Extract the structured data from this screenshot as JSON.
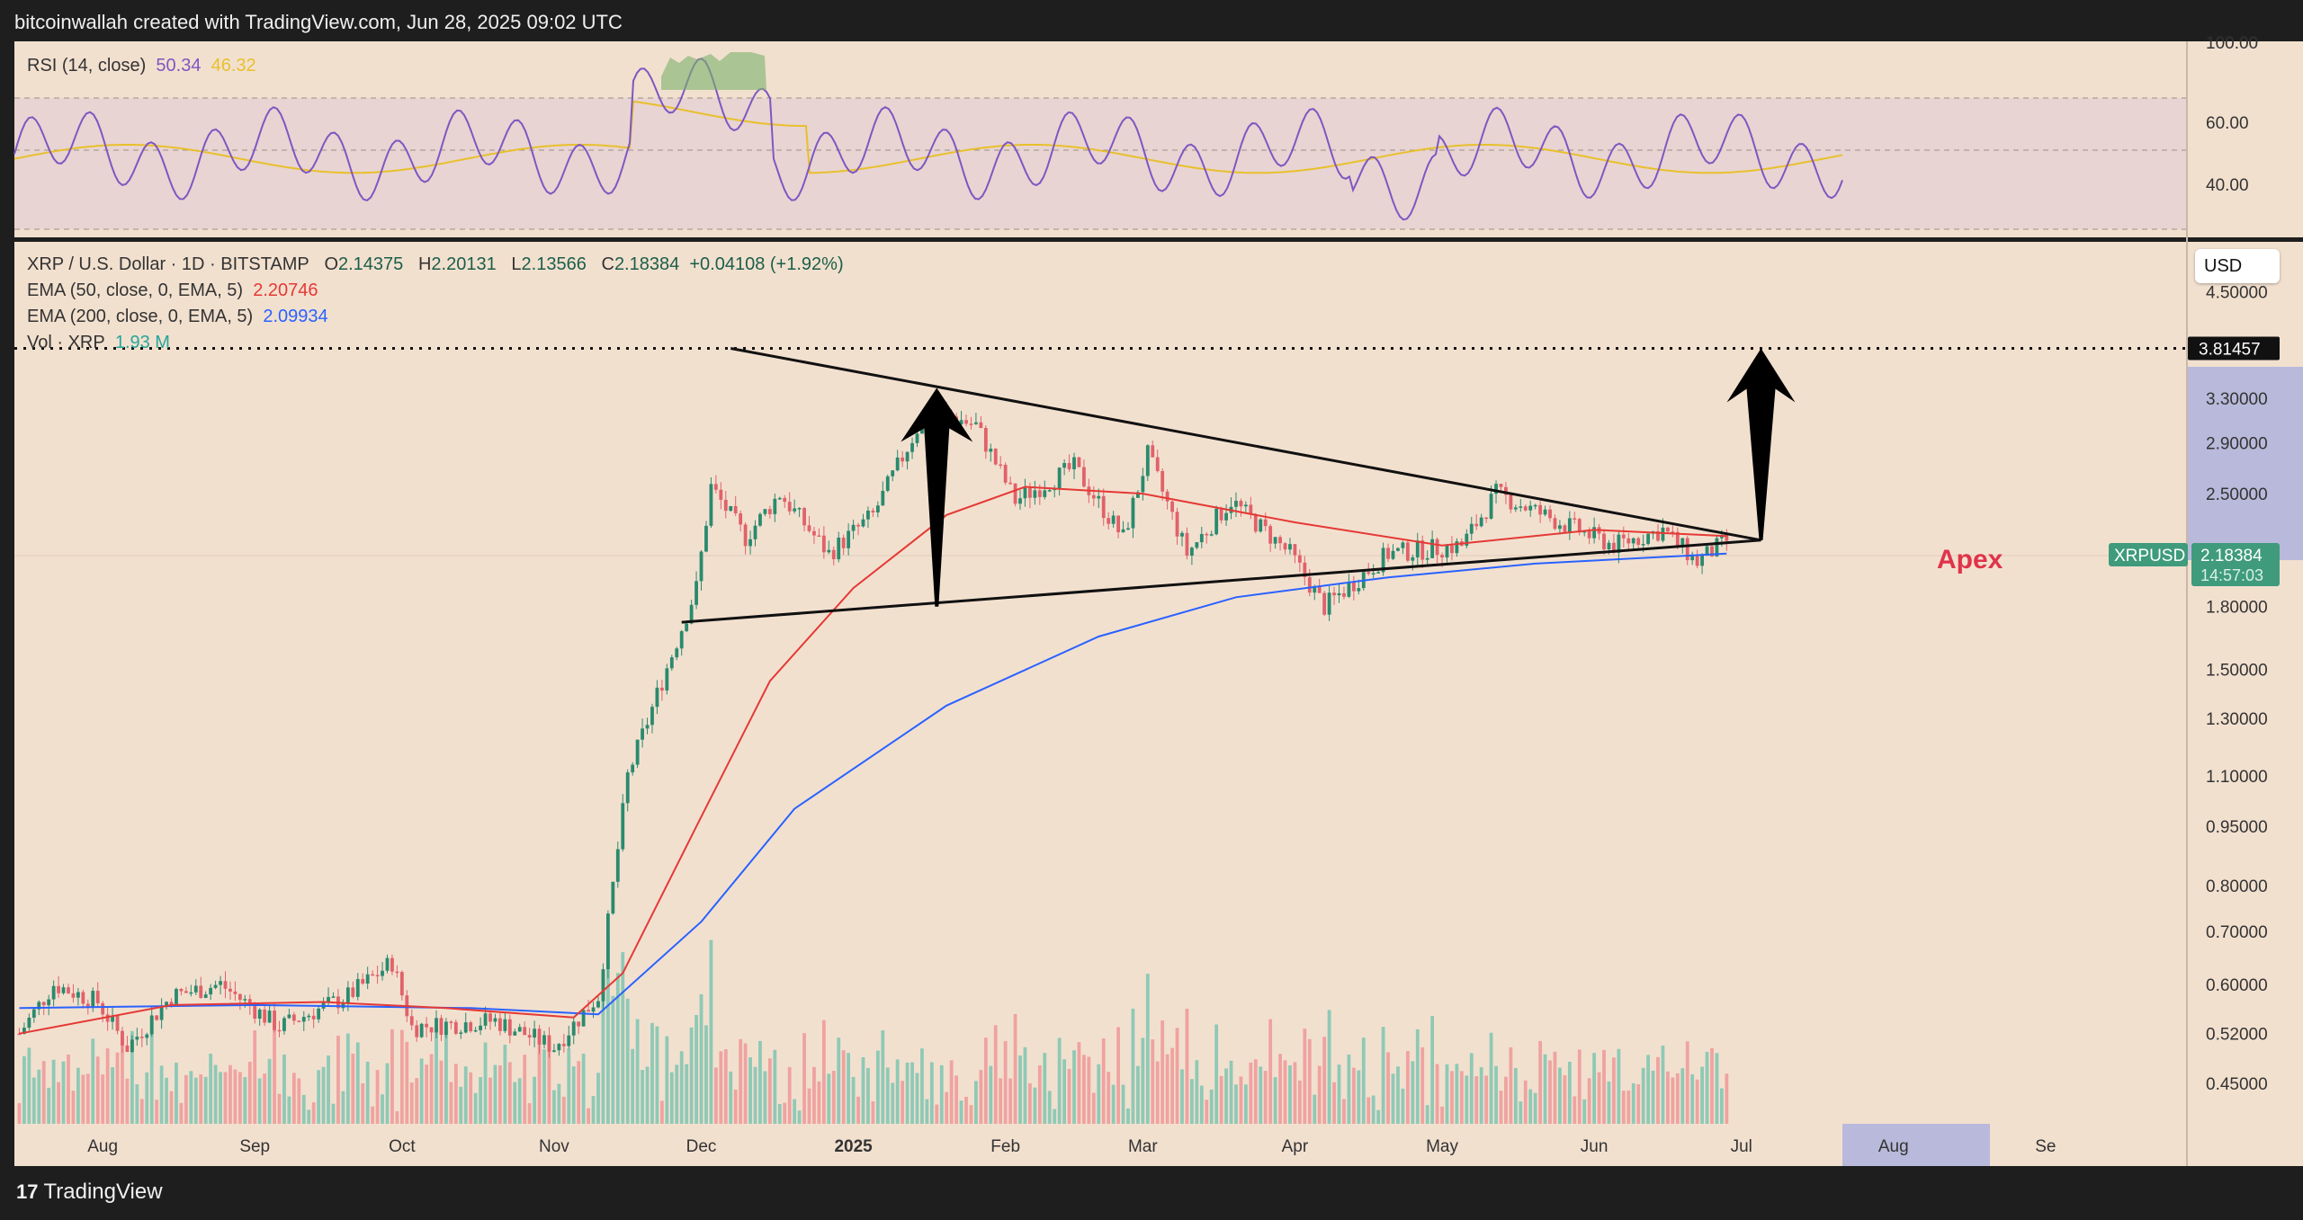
{
  "header": {
    "title": "bitcoinwallah created with TradingView.com, Jun 28, 2025 09:02 UTC"
  },
  "footer": {
    "brand": "TradingView"
  },
  "rsi": {
    "label": "RSI (14, close)",
    "value": "50.34",
    "ma_value": "46.32",
    "color": "#7e57c2",
    "ma_color": "#e8c02c",
    "scale": [
      "100.00",
      "60.00",
      "40.00"
    ]
  },
  "main": {
    "title": "XRP / U.S. Dollar · 1D · BITSTAMP",
    "ohlc": {
      "o_label": "O",
      "o": "2.14375",
      "h_label": "H",
      "h": "2.20131",
      "l_label": "L",
      "l": "2.13566",
      "c_label": "C",
      "c": "2.18384",
      "change": "+0.04108 (+1.92%)"
    },
    "ema50": {
      "label": "EMA (50, close, 0, EMA, 5)",
      "value": "2.20746",
      "color": "#e53935"
    },
    "ema200": {
      "label": "EMA (200, close, 0, EMA, 5)",
      "value": "2.09934",
      "color": "#2962ff"
    },
    "vol": {
      "label": "Vol · XRP",
      "value": "1.93 M",
      "color": "#26a69a"
    },
    "currency_button": "USD",
    "price_tag": {
      "symbol": "XRPUSD",
      "price": "2.18384",
      "countdown": "14:57:03"
    },
    "target_tag": "3.81457",
    "apex_label": "Apex"
  },
  "chart_data": {
    "type": "candlestick",
    "title": "XRP / U.S. Dollar · 1D · BITSTAMP",
    "y_scale": "log",
    "ylim": [
      0.4,
      5.2
    ],
    "y_ticks": [
      "4.50000",
      "3.30000",
      "2.90000",
      "2.50000",
      "1.80000",
      "1.50000",
      "1.30000",
      "1.10000",
      "0.95000",
      "0.80000",
      "0.70000",
      "0.60000",
      "0.52000",
      "0.45000"
    ],
    "x_ticks": [
      "Aug",
      "Sep",
      "Oct",
      "Nov",
      "Dec",
      "2025",
      "Feb",
      "Mar",
      "Apr",
      "May",
      "Jun",
      "Jul",
      "Aug",
      "Se"
    ],
    "close_path": [
      {
        "d": "2024-07-15",
        "v": 0.52
      },
      {
        "d": "2024-07-22",
        "v": 0.6
      },
      {
        "d": "2024-07-31",
        "v": 0.57
      },
      {
        "d": "2024-08-06",
        "v": 0.5
      },
      {
        "d": "2024-08-15",
        "v": 0.58
      },
      {
        "d": "2024-08-25",
        "v": 0.6
      },
      {
        "d": "2024-09-06",
        "v": 0.53
      },
      {
        "d": "2024-09-20",
        "v": 0.58
      },
      {
        "d": "2024-09-29",
        "v": 0.64
      },
      {
        "d": "2024-10-03",
        "v": 0.53
      },
      {
        "d": "2024-10-20",
        "v": 0.54
      },
      {
        "d": "2024-11-01",
        "v": 0.5
      },
      {
        "d": "2024-11-10",
        "v": 0.58
      },
      {
        "d": "2024-11-16",
        "v": 1.1
      },
      {
        "d": "2024-11-23",
        "v": 1.45
      },
      {
        "d": "2024-11-30",
        "v": 1.9
      },
      {
        "d": "2024-12-03",
        "v": 2.55
      },
      {
        "d": "2024-12-10",
        "v": 2.2
      },
      {
        "d": "2024-12-17",
        "v": 2.5
      },
      {
        "d": "2024-12-27",
        "v": 2.1
      },
      {
        "d": "2025-01-05",
        "v": 2.35
      },
      {
        "d": "2025-01-16",
        "v": 3.2
      },
      {
        "d": "2025-01-26",
        "v": 3.05
      },
      {
        "d": "2025-02-03",
        "v": 2.45
      },
      {
        "d": "2025-02-15",
        "v": 2.7
      },
      {
        "d": "2025-02-25",
        "v": 2.2
      },
      {
        "d": "2025-03-02",
        "v": 2.8
      },
      {
        "d": "2025-03-10",
        "v": 2.1
      },
      {
        "d": "2025-03-19",
        "v": 2.45
      },
      {
        "d": "2025-03-31",
        "v": 2.1
      },
      {
        "d": "2025-04-07",
        "v": 1.8
      },
      {
        "d": "2025-04-20",
        "v": 2.1
      },
      {
        "d": "2025-05-05",
        "v": 2.15
      },
      {
        "d": "2025-05-12",
        "v": 2.5
      },
      {
        "d": "2025-05-25",
        "v": 2.3
      },
      {
        "d": "2025-06-05",
        "v": 2.15
      },
      {
        "d": "2025-06-15",
        "v": 2.25
      },
      {
        "d": "2025-06-22",
        "v": 2.05
      },
      {
        "d": "2025-06-28",
        "v": 2.18
      }
    ],
    "ema50_path": [
      {
        "d": "2024-07-15",
        "v": 0.52
      },
      {
        "d": "2024-08-15",
        "v": 0.565
      },
      {
        "d": "2024-09-15",
        "v": 0.57
      },
      {
        "d": "2024-10-10",
        "v": 0.56
      },
      {
        "d": "2024-11-05",
        "v": 0.545
      },
      {
        "d": "2024-11-15",
        "v": 0.62
      },
      {
        "d": "2024-11-30",
        "v": 0.95
      },
      {
        "d": "2024-12-15",
        "v": 1.45
      },
      {
        "d": "2025-01-01",
        "v": 1.9
      },
      {
        "d": "2025-01-20",
        "v": 2.35
      },
      {
        "d": "2025-02-05",
        "v": 2.55
      },
      {
        "d": "2025-03-01",
        "v": 2.5
      },
      {
        "d": "2025-04-01",
        "v": 2.3
      },
      {
        "d": "2025-05-01",
        "v": 2.15
      },
      {
        "d": "2025-06-01",
        "v": 2.25
      },
      {
        "d": "2025-06-28",
        "v": 2.21
      }
    ],
    "ema200_path": [
      {
        "d": "2024-07-15",
        "v": 0.56
      },
      {
        "d": "2024-09-01",
        "v": 0.565
      },
      {
        "d": "2024-10-15",
        "v": 0.56
      },
      {
        "d": "2024-11-10",
        "v": 0.55
      },
      {
        "d": "2024-12-01",
        "v": 0.72
      },
      {
        "d": "2024-12-20",
        "v": 1.0
      },
      {
        "d": "2025-01-20",
        "v": 1.35
      },
      {
        "d": "2025-02-20",
        "v": 1.65
      },
      {
        "d": "2025-03-20",
        "v": 1.85
      },
      {
        "d": "2025-04-20",
        "v": 1.96
      },
      {
        "d": "2025-05-20",
        "v": 2.04
      },
      {
        "d": "2025-06-28",
        "v": 2.1
      }
    ],
    "resistance_line": [
      {
        "d": "2024-12-07",
        "v": 3.81457
      },
      {
        "d": "2025-07-05",
        "v": 2.18384
      }
    ],
    "support_line": [
      {
        "d": "2024-11-27",
        "v": 1.72
      },
      {
        "d": "2025-07-05",
        "v": 2.18384
      }
    ],
    "target_level": 3.81457,
    "pole_arrow": {
      "d": "2025-01-18",
      "base": 1.8,
      "tip": 3.4
    },
    "breakout_arrow": {
      "d": "2025-07-05",
      "base": 2.18384,
      "tip": 3.81457
    }
  }
}
